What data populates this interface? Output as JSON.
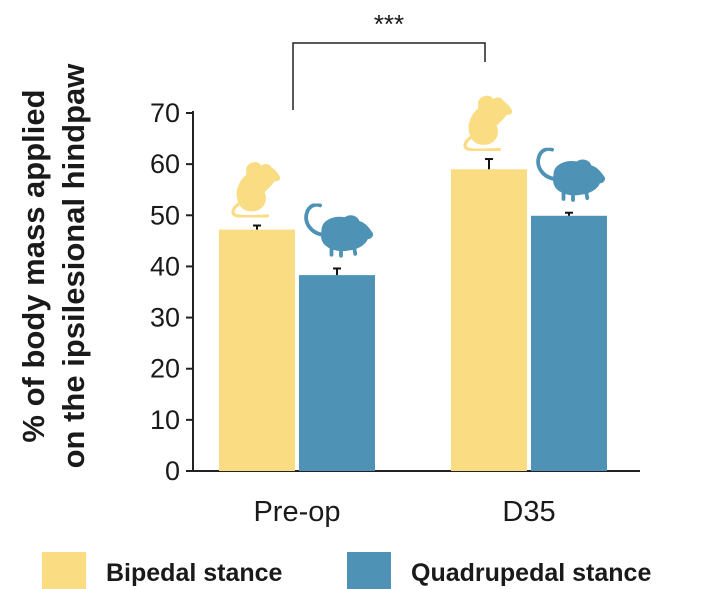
{
  "chart_data": {
    "type": "bar",
    "categories": [
      "Pre-op",
      "D35"
    ],
    "series": [
      {
        "name": "Bipedal stance",
        "values": [
          47.2,
          59.0
        ],
        "errors": [
          0.8,
          2.0
        ],
        "color": "#FADC82",
        "icon": "rat-bipedal-icon"
      },
      {
        "name": "Quadrupedal stance",
        "values": [
          38.3,
          49.9
        ],
        "errors": [
          1.3,
          0.6
        ],
        "color": "#4E93B5",
        "icon": "rat-quadrupedal-icon"
      }
    ],
    "ylabel_line1": "% of body mass applied",
    "ylabel_line2": "on the ipsilesional hindpaw",
    "ylim": [
      0,
      70
    ],
    "yticks": [
      "0",
      "10",
      "20",
      "30",
      "40",
      "50",
      "60",
      "70"
    ],
    "significance": "***",
    "legend_position": "bottom",
    "grid": false
  }
}
